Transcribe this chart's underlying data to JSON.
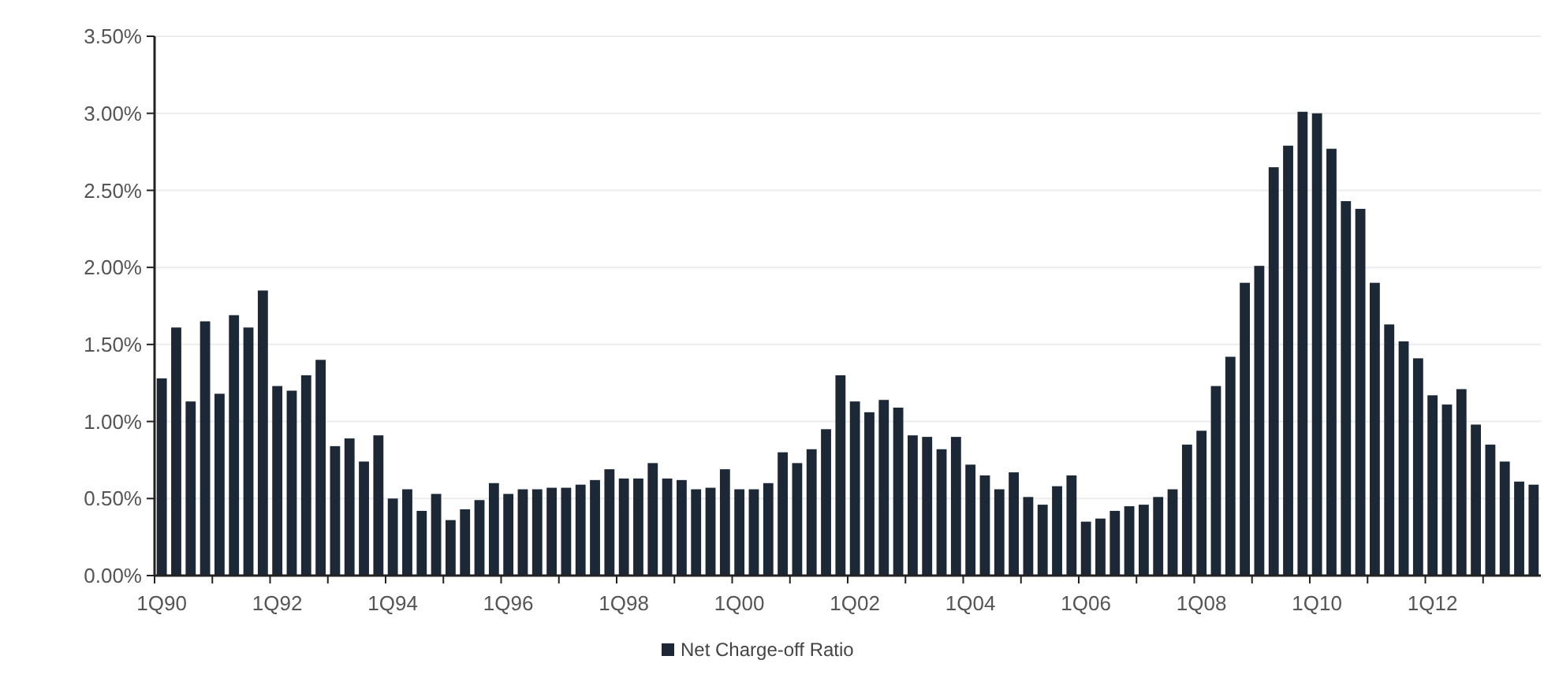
{
  "chart_data": {
    "type": "bar",
    "categories": [
      "1Q90",
      null,
      null,
      null,
      null,
      null,
      null,
      null,
      "1Q92",
      null,
      null,
      null,
      null,
      null,
      null,
      null,
      "1Q94",
      null,
      null,
      null,
      null,
      null,
      null,
      null,
      "1Q96",
      null,
      null,
      null,
      null,
      null,
      null,
      null,
      "1Q98",
      null,
      null,
      null,
      null,
      null,
      null,
      null,
      "1Q00",
      null,
      null,
      null,
      null,
      null,
      null,
      null,
      "1Q02",
      null,
      null,
      null,
      null,
      null,
      null,
      null,
      "1Q04",
      null,
      null,
      null,
      null,
      null,
      null,
      null,
      "1Q06",
      null,
      null,
      null,
      null,
      null,
      null,
      null,
      "1Q08",
      null,
      null,
      null,
      null,
      null,
      null,
      null,
      "1Q10",
      null,
      null,
      null,
      null,
      null,
      null,
      null,
      "1Q12",
      null,
      null,
      null,
      null,
      null,
      null,
      null
    ],
    "series": [
      {
        "name": "Net Charge-off Ratio",
        "color": "#1c2836",
        "values": [
          1.28,
          1.61,
          1.13,
          1.65,
          1.18,
          1.69,
          1.61,
          1.85,
          1.23,
          1.2,
          1.3,
          1.4,
          0.84,
          0.89,
          0.74,
          0.91,
          0.5,
          0.56,
          0.42,
          0.53,
          0.36,
          0.43,
          0.49,
          0.6,
          0.53,
          0.56,
          0.56,
          0.57,
          0.57,
          0.59,
          0.62,
          0.69,
          0.63,
          0.63,
          0.73,
          0.63,
          0.62,
          0.56,
          0.57,
          0.69,
          0.56,
          0.56,
          0.6,
          0.8,
          0.73,
          0.82,
          0.95,
          1.3,
          1.13,
          1.06,
          1.14,
          1.09,
          0.91,
          0.9,
          0.82,
          0.9,
          0.72,
          0.65,
          0.56,
          0.67,
          0.51,
          0.46,
          0.58,
          0.65,
          0.35,
          0.37,
          0.42,
          0.45,
          0.46,
          0.51,
          0.56,
          0.85,
          0.94,
          1.23,
          1.42,
          1.9,
          2.01,
          2.65,
          2.79,
          3.01,
          3.0,
          2.77,
          2.43,
          2.38,
          1.9,
          1.63,
          1.52,
          1.41,
          1.17,
          1.11,
          1.21,
          0.98,
          0.85,
          0.74,
          0.61,
          0.59
        ]
      }
    ],
    "ylim": [
      0,
      3.5
    ],
    "yticks": [
      {
        "value": 0,
        "label": "0.00%"
      },
      {
        "value": 0.5,
        "label": "0.50%"
      },
      {
        "value": 1,
        "label": "1.00%"
      },
      {
        "value": 1.5,
        "label": "1.50%"
      },
      {
        "value": 2,
        "label": "2.00%"
      },
      {
        "value": 2.5,
        "label": "2.50%"
      },
      {
        "value": 3,
        "label": "3.00%"
      },
      {
        "value": 3.5,
        "label": "3.50%"
      }
    ],
    "grid": "y",
    "legend": "bottom"
  }
}
